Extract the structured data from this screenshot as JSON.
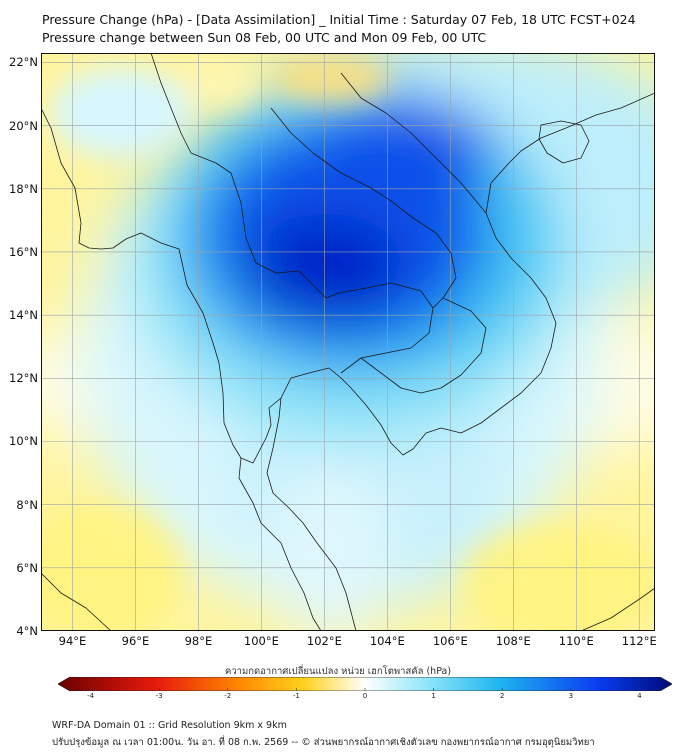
{
  "title_line1": "Pressure Change (hPa) - [Data Assimilation] _ Initial Time : Saturday 07 Feb, 18 UTC FCST+024",
  "title_line2": "Pressure change between Sun 08 Feb, 00 UTC and Mon 09 Feb, 00 UTC",
  "map": {
    "lat_labels": [
      "22°N",
      "20°N",
      "18°N",
      "16°N",
      "14°N",
      "12°N",
      "10°N",
      "8°N",
      "6°N",
      "4°N"
    ],
    "lon_labels": [
      "94°E",
      "96°E",
      "98°E",
      "100°E",
      "102°E",
      "104°E",
      "106°E",
      "108°E",
      "110°E",
      "112°E"
    ],
    "lat_values": [
      22,
      20,
      18,
      16,
      14,
      12,
      10,
      8,
      6,
      4
    ],
    "lon_values": [
      94,
      96,
      98,
      100,
      102,
      104,
      106,
      108,
      110,
      112
    ],
    "lat_range": [
      4,
      22.3
    ],
    "lon_range": [
      93,
      112.5
    ]
  },
  "colorbar": {
    "label": "ความกดอากาศเปลี่ยนแปลง หน่วย เฮกโตพาสคัล (hPa)",
    "ticks": [
      "-4",
      "-3",
      "-2",
      "-1",
      "0",
      "1",
      "2",
      "3",
      "4"
    ],
    "tick_values": [
      -4,
      -3,
      -2,
      -1,
      0,
      1,
      2,
      3,
      4
    ],
    "range": [
      -4.3,
      4.3
    ],
    "colors": {
      "min": "#6b0000",
      "neg_strong": "#e81a0c",
      "neg_mid": "#ff8c00",
      "neg_weak": "#ffd21e",
      "neutral": "#ffffff",
      "pos_weak": "#8fe6fa",
      "pos_mid": "#1fb4f0",
      "pos_strong": "#0a3cf0",
      "max": "#000a78"
    }
  },
  "footer_line1": "WRF-DA Domain 01 :: Grid Resolution 9km x 9km",
  "footer_line2": "ปรับปรุงข้อมูล ณ เวลา 01:00น. วัน อา. ที่ 08 ก.พ. 2569 -- © ส่วนพยากรณ์อากาศเชิงตัวเลข กองพยากรณ์อากาศ กรมอุตุนิยมวิทยา"
}
